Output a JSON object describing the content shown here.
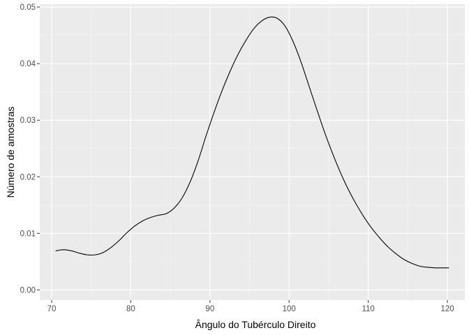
{
  "chart_data": {
    "type": "line",
    "title": "",
    "xlabel": "Ângulo do Tubérculo Direito",
    "ylabel": "Número de amostras",
    "xlim": [
      68.5,
      122.2
    ],
    "ylim": [
      -0.0018,
      0.0505
    ],
    "x_ticks": [
      70,
      80,
      90,
      100,
      110,
      120
    ],
    "x_tick_labels": [
      "70",
      "80",
      "90",
      "100",
      "110",
      "120"
    ],
    "y_ticks": [
      0.0,
      0.01,
      0.02,
      0.03,
      0.04,
      0.05
    ],
    "y_tick_labels": [
      "0.00",
      "0.01",
      "0.02",
      "0.03",
      "0.04",
      "0.05"
    ],
    "grid": true,
    "legend": "none",
    "colors": {
      "panel": "#ebebeb",
      "grid_major": "#ffffff",
      "line": "#000000"
    },
    "series": [
      {
        "x": [
          70.5,
          71.5,
          72.5,
          73.5,
          74.5,
          75.5,
          76.5,
          77.5,
          78.5,
          79.5,
          80.5,
          81.5,
          82.5,
          83.5,
          84.5,
          85.5,
          86.5,
          87.5,
          88.5,
          89.5,
          90.5,
          91.5,
          92.5,
          93.5,
          94.5,
          95.5,
          96.5,
          97.5,
          98.5,
          99.5,
          100.5,
          101.5,
          102.5,
          103.5,
          104.5,
          105.5,
          106.5,
          107.5,
          108.5,
          109.5,
          110.5,
          111.5,
          112.5,
          113.5,
          114.5,
          115.5,
          116.5,
          117.5,
          118.5,
          119.5,
          120.2
        ],
        "y": [
          0.0069,
          0.0071,
          0.0069,
          0.0065,
          0.0062,
          0.0062,
          0.0066,
          0.0075,
          0.0087,
          0.0101,
          0.0113,
          0.0122,
          0.0128,
          0.0132,
          0.0135,
          0.0145,
          0.0163,
          0.0191,
          0.0228,
          0.0272,
          0.0313,
          0.0351,
          0.0385,
          0.0415,
          0.044,
          0.0461,
          0.0475,
          0.0482,
          0.048,
          0.0466,
          0.0439,
          0.0403,
          0.0361,
          0.0319,
          0.0278,
          0.0241,
          0.0207,
          0.0177,
          0.0151,
          0.0128,
          0.0108,
          0.0091,
          0.0076,
          0.0064,
          0.0054,
          0.0047,
          0.0042,
          0.004,
          0.0039,
          0.0039,
          0.0039
        ]
      }
    ]
  }
}
